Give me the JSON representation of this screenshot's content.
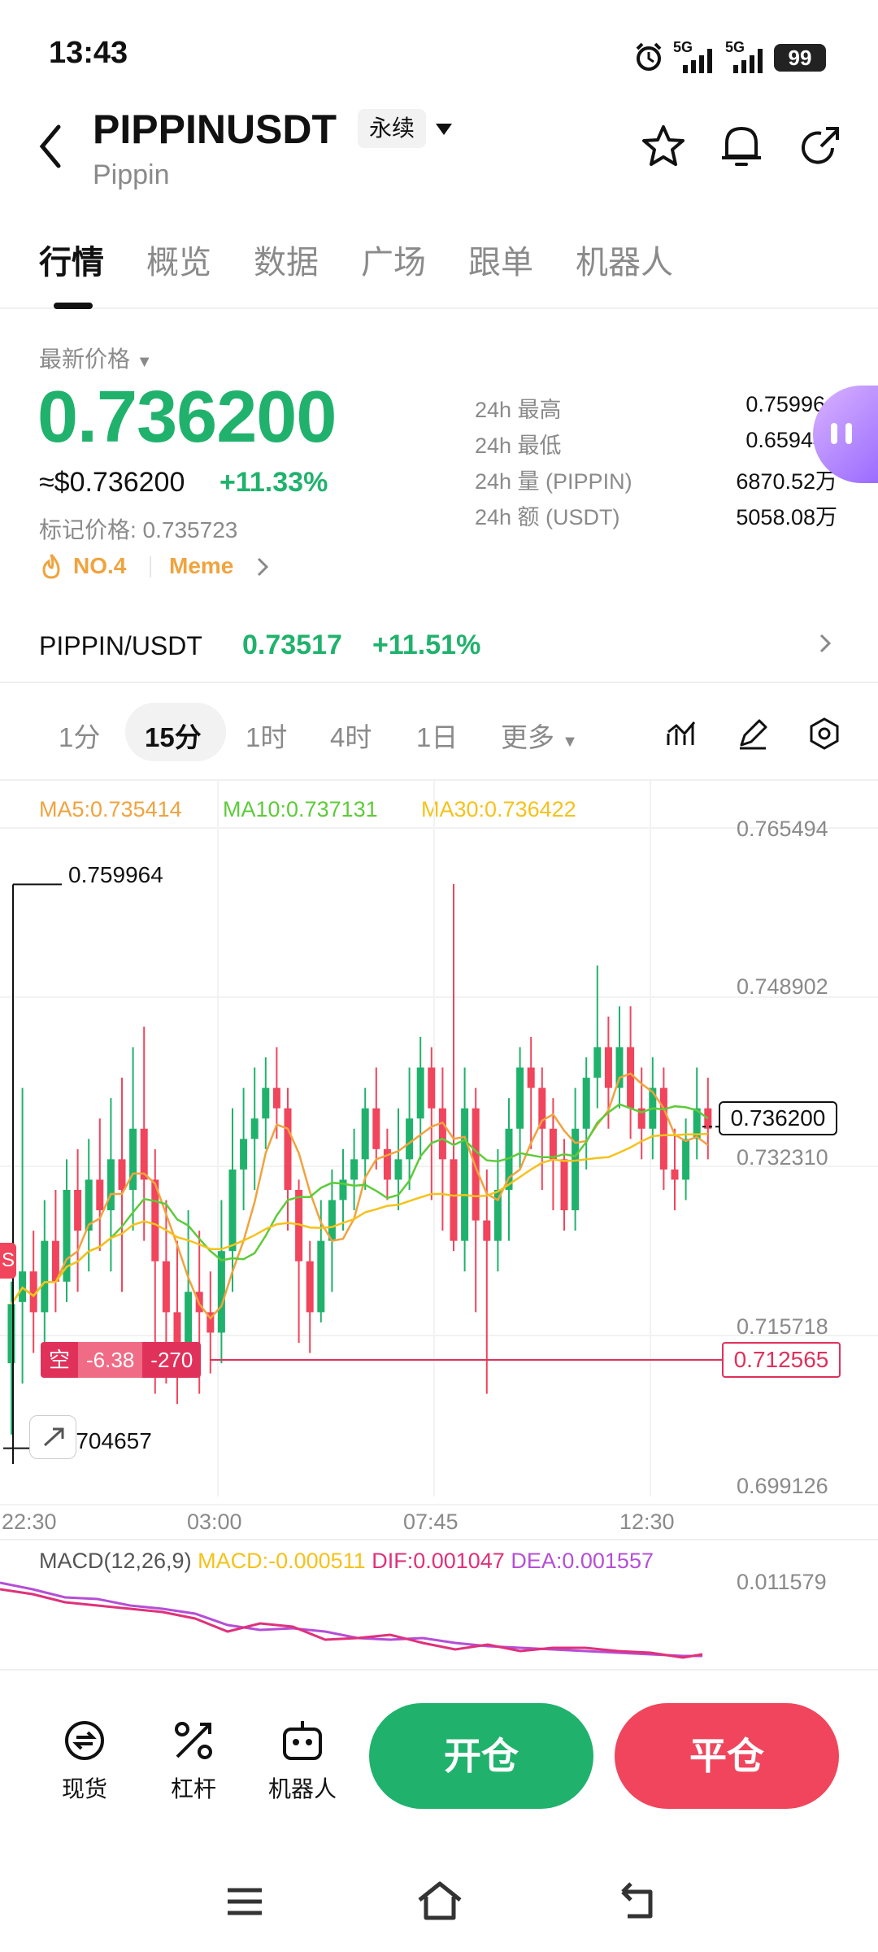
{
  "status_bar": {
    "time": "13:43",
    "net1": "5G",
    "net2": "5G",
    "battery": "99"
  },
  "header": {
    "symbol": "PIPPINUSDT",
    "contract_type": "永续",
    "subname": "Pippin"
  },
  "tabs": [
    "行情",
    "概览",
    "数据",
    "广场",
    "跟单",
    "机器人"
  ],
  "ticker": {
    "latest_label": "最新价格",
    "price": "0.736200",
    "usd_price": "≈$0.736200",
    "change": "+11.33%",
    "mark_price": "标记价格: 0.735723",
    "rank": "NO.4",
    "tag": "Meme"
  },
  "stats": [
    {
      "label": "24h  最高",
      "value": "0.759964"
    },
    {
      "label": "24h  最低",
      "value": "0.659443"
    },
    {
      "label": "24h  量 (PIPPIN)",
      "value": "6870.52万"
    },
    {
      "label": "24h  额 (USDT)",
      "value": "5058.08万"
    }
  ],
  "spot": {
    "pair": "PIPPIN/USDT",
    "price": "0.73517",
    "change": "+11.51%"
  },
  "intervals": [
    "1分",
    "15分",
    "1时",
    "4时",
    "1日",
    "更多"
  ],
  "chart": {
    "ma5": "MA5:0.735414",
    "ma10": "MA10:0.737131",
    "ma30": "MA30:0.736422",
    "y_ticks": [
      "0.765494",
      "0.748902",
      "0.732310",
      "0.715718",
      "0.699126"
    ],
    "x_ticks": [
      "22:30",
      "03:00",
      "07:45",
      "12:30"
    ],
    "high_label": "0.759964",
    "low_label": "0.704657",
    "current_price": "0.736200",
    "position_side": "空",
    "position_pnl": "-6.38",
    "position_qty": "-270",
    "position_price": "0.712565",
    "s_marker": "S",
    "macd_title": "MACD(12,26,9)",
    "macd_val": "MACD:-0.000511",
    "dif_val": "DIF:0.001047",
    "dea_val": "DEA:0.001557",
    "macd_tick": "0.011579",
    "colors": {
      "up": "#20b26c",
      "down": "#f0455c",
      "ma5": "#f0a33e",
      "ma10": "#5ecb3a",
      "ma30": "#f5c21b",
      "dif": "#e0317a",
      "dea": "#b44fd6"
    }
  },
  "bottom_nav": {
    "spot": "现货",
    "leverage": "杠杆",
    "bot": "机器人",
    "open": "开仓",
    "close": "平仓"
  }
}
